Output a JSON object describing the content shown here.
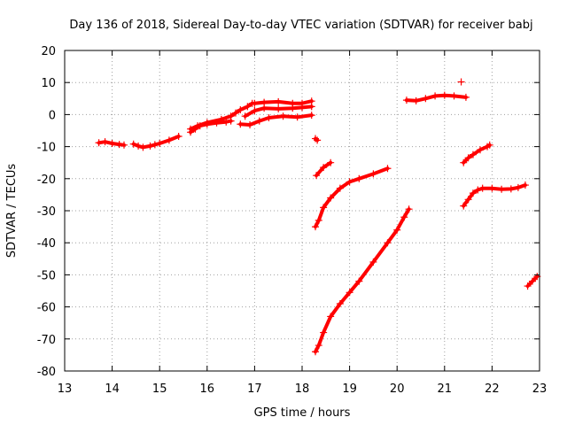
{
  "chart_data": {
    "type": "scatter",
    "title": "Day 136 of 2018, Sidereal Day-to-day VTEC variation (SDTVAR) for receiver babj",
    "xlabel": "GPS time / hours",
    "ylabel": "SDTVAR / TECUs",
    "xlim": [
      13,
      23
    ],
    "ylim": [
      -80,
      20
    ],
    "xticks": [
      "13",
      "14",
      "15",
      "16",
      "17",
      "18",
      "19",
      "20",
      "21",
      "22",
      "23"
    ],
    "yticks": [
      "-80",
      "-70",
      "-60",
      "-50",
      "-40",
      "-30",
      "-20",
      "-10",
      "0",
      "10",
      "20"
    ],
    "grid": true,
    "marker": "+",
    "color": "#ff0000",
    "series": [
      {
        "x": [
          13.72,
          13.85,
          14.0,
          14.15,
          14.25
        ],
        "y": [
          -8.8,
          -8.5,
          -9.0,
          -9.3,
          -9.5
        ]
      },
      {
        "x": [
          14.45,
          14.55,
          14.65,
          14.8,
          14.9,
          15.0,
          15.2,
          15.4
        ],
        "y": [
          -9.2,
          -9.8,
          -10.2,
          -9.8,
          -9.4,
          -9.0,
          -8.0,
          -6.8
        ]
      },
      {
        "x": [
          15.65,
          15.75,
          15.85,
          16.0,
          16.2,
          16.4,
          16.5
        ],
        "y": [
          -5.5,
          -4.5,
          -3.5,
          -3.0,
          -2.6,
          -2.3,
          -2.0
        ]
      },
      {
        "x": [
          15.65,
          15.8,
          16.0,
          16.3,
          16.5,
          16.6,
          16.7,
          16.85,
          16.95
        ],
        "y": [
          -4.5,
          -3.5,
          -2.5,
          -1.5,
          -0.5,
          0.5,
          1.5,
          2.5,
          3.5
        ]
      },
      {
        "x": [
          16.7,
          16.9,
          17.1,
          17.3,
          17.6,
          17.9,
          18.2
        ],
        "y": [
          -3.0,
          -3.2,
          -2.0,
          -1.0,
          -0.5,
          -0.8,
          -0.2
        ]
      },
      {
        "x": [
          16.8,
          17.0,
          17.2,
          17.5,
          17.8,
          18.0,
          18.2
        ],
        "y": [
          -0.5,
          1.2,
          2.0,
          1.8,
          2.0,
          2.2,
          2.5
        ]
      },
      {
        "x": [
          17.0,
          17.2,
          17.5,
          17.8,
          18.0,
          18.2
        ],
        "y": [
          3.5,
          3.8,
          4.0,
          3.5,
          3.5,
          4.2
        ]
      },
      {
        "x": [
          18.28,
          18.32
        ],
        "y": [
          -7.5,
          -8.0
        ]
      },
      {
        "x": [
          18.3,
          18.45,
          18.6
        ],
        "y": [
          -19.0,
          -16.5,
          -15.0
        ]
      },
      {
        "x": [
          18.28,
          18.35,
          18.45,
          18.6,
          18.8,
          19.0,
          19.2,
          19.5,
          19.8
        ],
        "y": [
          -35.0,
          -33.0,
          -29.0,
          -26.0,
          -23.0,
          -21.0,
          -20.0,
          -18.5,
          -16.8
        ]
      },
      {
        "x": [
          18.28,
          18.35,
          18.45,
          18.6,
          18.8,
          19.0,
          19.2,
          19.5,
          19.8,
          20.0,
          20.15,
          20.25
        ],
        "y": [
          -74.0,
          -72.0,
          -68.0,
          -63.0,
          -59.0,
          -55.5,
          -52.0,
          -46.0,
          -40.0,
          -36.0,
          -32.0,
          -29.5
        ]
      },
      {
        "x": [
          20.2,
          20.4,
          20.6,
          20.8,
          21.0,
          21.2,
          21.45
        ],
        "y": [
          4.5,
          4.3,
          5.0,
          5.8,
          6.0,
          5.8,
          5.4
        ]
      },
      {
        "x": [
          21.35
        ],
        "y": [
          10.2
        ]
      },
      {
        "x": [
          21.4,
          21.5,
          21.6,
          21.75,
          21.9,
          21.95
        ],
        "y": [
          -15.0,
          -13.5,
          -12.5,
          -11.0,
          -10.0,
          -9.5
        ]
      },
      {
        "x": [
          21.4,
          21.5,
          21.6,
          21.7,
          21.8,
          22.0,
          22.2,
          22.4,
          22.55,
          22.7
        ],
        "y": [
          -28.5,
          -26.5,
          -24.5,
          -23.5,
          -23.0,
          -23.0,
          -23.3,
          -23.2,
          -22.8,
          -22.0
        ]
      },
      {
        "x": [
          22.75,
          22.85,
          22.95
        ],
        "y": [
          -53.5,
          -52.0,
          -50.5
        ]
      }
    ]
  }
}
